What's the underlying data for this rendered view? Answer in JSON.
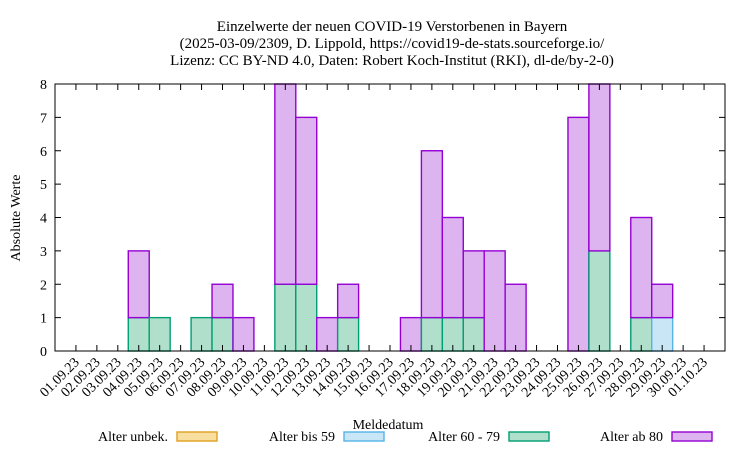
{
  "chart_data": {
    "type": "bar",
    "stacked": true,
    "title_lines": [
      "Einzelwerte der neuen COVID-19 Verstorbenen in Bayern",
      "(2025-03-09/2309, D. Lippold, https://covid19-de-stats.sourceforge.io/",
      "Lizenz: CC BY-ND 4.0, Daten: Robert Koch-Institut (RKI), dl-de/by-2-0)"
    ],
    "xlabel": "Meldedatum",
    "ylabel": "Absolute Werte",
    "ylim": [
      0,
      8
    ],
    "yticks": [
      0,
      1,
      2,
      3,
      4,
      5,
      6,
      7,
      8
    ],
    "categories": [
      "01.09.23",
      "02.09.23",
      "03.09.23",
      "04.09.23",
      "05.09.23",
      "06.09.23",
      "07.09.23",
      "08.09.23",
      "09.09.23",
      "10.09.23",
      "11.09.23",
      "12.09.23",
      "13.09.23",
      "14.09.23",
      "15.09.23",
      "16.09.23",
      "17.09.23",
      "18.09.23",
      "19.09.23",
      "20.09.23",
      "21.09.23",
      "22.09.23",
      "23.09.23",
      "24.09.23",
      "25.09.23",
      "26.09.23",
      "27.09.23",
      "28.09.23",
      "29.09.23",
      "30.09.23",
      "01.10.23"
    ],
    "series": [
      {
        "name": "Alter unbek.",
        "key": "unknown",
        "fill": "#f8dfa0",
        "stroke": "#e0a020",
        "values": [
          0,
          0,
          0,
          0,
          0,
          0,
          0,
          0,
          0,
          0,
          0,
          0,
          0,
          0,
          0,
          0,
          0,
          0,
          0,
          0,
          0,
          0,
          0,
          0,
          0,
          0,
          0,
          0,
          0,
          0,
          0
        ]
      },
      {
        "name": "Alter bis 59",
        "key": "u59",
        "fill": "#c8e6f6",
        "stroke": "#56b4e9",
        "values": [
          0,
          0,
          0,
          0,
          0,
          0,
          0,
          0,
          0,
          0,
          0,
          0,
          0,
          0,
          0,
          0,
          0,
          0,
          0,
          0,
          0,
          0,
          0,
          0,
          0,
          0,
          0,
          0,
          1,
          0,
          0
        ]
      },
      {
        "name": "Alter 60 - 79",
        "key": "60to79",
        "fill": "#b0e0cc",
        "stroke": "#009e73",
        "values": [
          0,
          0,
          0,
          1,
          1,
          0,
          1,
          1,
          0,
          0,
          2,
          2,
          0,
          1,
          0,
          0,
          0,
          1,
          1,
          1,
          0,
          0,
          0,
          0,
          0,
          3,
          0,
          1,
          0,
          0,
          0
        ]
      },
      {
        "name": "Alter ab 80",
        "key": "80plus",
        "fill": "#deb4f0",
        "stroke": "#9400d3",
        "values": [
          0,
          0,
          0,
          2,
          0,
          0,
          0,
          1,
          1,
          0,
          6,
          5,
          1,
          1,
          0,
          0,
          1,
          5,
          3,
          2,
          3,
          2,
          0,
          0,
          7,
          5,
          0,
          3,
          1,
          0,
          0
        ]
      }
    ],
    "legend_position": "bottom"
  }
}
